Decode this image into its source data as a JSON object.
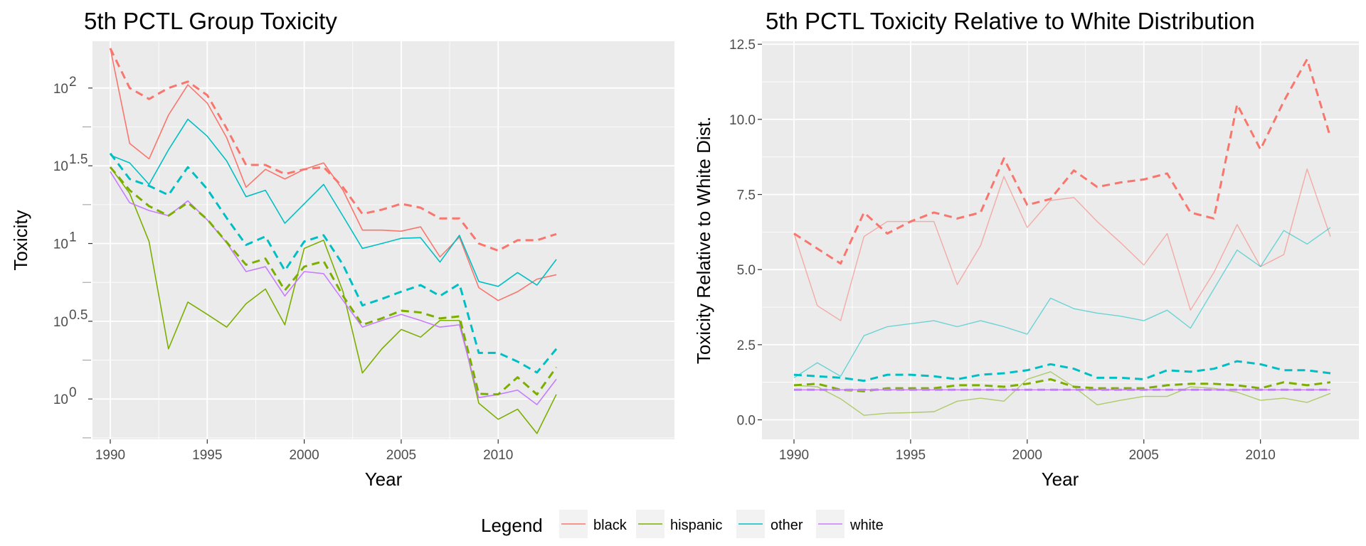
{
  "colors": {
    "black": "#F8766D",
    "hispanic": "#7CAE00",
    "other": "#00BFC4",
    "white": "#C77CFF",
    "panel_bg": "#EBEBEB",
    "grid": "#FFFFFF"
  },
  "legend": {
    "title": "Legend",
    "position": "bottom",
    "items": [
      "black",
      "hispanic",
      "other",
      "white"
    ]
  },
  "chart_data": [
    {
      "type": "line",
      "title": "5th PCTL Group Toxicity",
      "xlabel": "Year",
      "ylabel": "Toxicity",
      "y_scale": "log10",
      "xlim": [
        1990,
        2013
      ],
      "x_ticks": [
        1990,
        1995,
        2000,
        2005,
        2010
      ],
      "x_tick_labels": [
        "1990",
        "1995",
        "2000",
        "2005",
        "2010"
      ],
      "y_ticks": [
        1,
        3.162,
        10,
        31.62,
        100
      ],
      "y_tick_labels": [
        "10",
        "10",
        "10",
        "10",
        "10"
      ],
      "y_tick_exponents": [
        "0",
        "0.5",
        "1",
        "1.5",
        "2"
      ],
      "ylim": [
        0.55,
        200
      ],
      "x": [
        1990,
        1991,
        1992,
        1993,
        1994,
        1995,
        1996,
        1997,
        1998,
        1999,
        2000,
        2001,
        2002,
        2003,
        2004,
        2005,
        2006,
        2007,
        2008,
        2009,
        2010,
        2011,
        2012,
        2013
      ],
      "series": [
        {
          "name": "black",
          "style": "solid",
          "values": [
            180,
            44,
            35,
            67,
            105,
            80,
            48,
            23,
            30,
            26,
            30,
            33,
            22,
            12.2,
            12.2,
            12,
            12.8,
            8.2,
            11,
            5.2,
            4.3,
            4.9,
            5.9,
            6.3
          ]
        },
        {
          "name": "hispanic",
          "style": "solid",
          "values": [
            31,
            21,
            10.3,
            2.1,
            4.2,
            3.5,
            2.9,
            4.1,
            5.1,
            3.0,
            9.3,
            10.5,
            4.9,
            1.47,
            2.1,
            2.8,
            2.5,
            3.2,
            3.2,
            0.94,
            0.74,
            0.86,
            0.6,
            1.07
          ]
        },
        {
          "name": "other",
          "style": "solid",
          "values": [
            37,
            33,
            24,
            40,
            63,
            49,
            34,
            20,
            22,
            13.5,
            18,
            24,
            15,
            9.3,
            10,
            10.8,
            10.9,
            7.6,
            11.3,
            5.7,
            5.3,
            6.5,
            5.4,
            7.9
          ]
        },
        {
          "name": "white",
          "style": "solid",
          "values": [
            29,
            18.3,
            16.3,
            15.1,
            18.8,
            14.2,
            10.1,
            6.6,
            7.1,
            4.6,
            6.6,
            6.4,
            4.3,
            2.9,
            3.2,
            3.5,
            3.2,
            2.9,
            3.0,
            1.02,
            1.07,
            1.14,
            0.92,
            1.34
          ]
        },
        {
          "name": "black",
          "style": "dashed",
          "values": [
            180,
            100,
            85,
            100,
            110,
            90,
            55,
            32,
            32,
            28,
            30,
            31,
            23,
            15.5,
            16.5,
            18,
            17,
            14.5,
            14.5,
            10,
            9,
            10.5,
            10.5,
            11.5
          ]
        },
        {
          "name": "hispanic",
          "style": "dashed",
          "values": [
            31,
            22,
            17.4,
            15.1,
            18.3,
            14.3,
            10.2,
            7.3,
            8.0,
            5.0,
            7.1,
            7.7,
            4.6,
            3.0,
            3.3,
            3.7,
            3.6,
            3.3,
            3.4,
            1.08,
            1.07,
            1.38,
            1.07,
            1.6
          ]
        },
        {
          "name": "other",
          "style": "dashed",
          "values": [
            38,
            26,
            23.5,
            20.5,
            31,
            22.4,
            14.6,
            9.8,
            11.1,
            6.7,
            10.3,
            11.3,
            7.3,
            4.0,
            4.4,
            4.9,
            5.4,
            4.6,
            5.5,
            1.98,
            1.98,
            1.74,
            1.48,
            2.1
          ]
        }
      ]
    },
    {
      "type": "line",
      "title": "5th PCTL Toxicity Relative to White Distribution",
      "xlabel": "Year",
      "ylabel": "Toxicity Relative to White Dist.",
      "xlim": [
        1990,
        2013
      ],
      "ylim": [
        -0.65,
        12.6
      ],
      "x_ticks": [
        1990,
        1995,
        2000,
        2005,
        2010
      ],
      "x_tick_labels": [
        "1990",
        "1995",
        "2000",
        "2005",
        "2010"
      ],
      "y_ticks": [
        0,
        2.5,
        5,
        7.5,
        10,
        12.5
      ],
      "y_tick_labels": [
        "0.0",
        "2.5",
        "5.0",
        "7.5",
        "10.0",
        "12.5"
      ],
      "x": [
        1990,
        1991,
        1992,
        1993,
        1994,
        1995,
        1996,
        1997,
        1998,
        1999,
        2000,
        2001,
        2002,
        2003,
        2004,
        2005,
        2006,
        2007,
        2008,
        2009,
        2010,
        2011,
        2012,
        2013
      ],
      "series": [
        {
          "name": "black",
          "style": "solid",
          "values": [
            6.2,
            3.8,
            3.3,
            6.1,
            6.6,
            6.6,
            6.6,
            4.5,
            5.8,
            8.1,
            6.4,
            7.3,
            7.4,
            6.6,
            5.9,
            5.15,
            6.2,
            3.65,
            4.9,
            6.5,
            5.1,
            5.5,
            8.35,
            6.1
          ]
        },
        {
          "name": "hispanic",
          "style": "solid",
          "values": [
            1.15,
            1.1,
            0.7,
            0.15,
            0.22,
            0.24,
            0.27,
            0.62,
            0.72,
            0.62,
            1.35,
            1.6,
            1.1,
            0.5,
            0.65,
            0.78,
            0.78,
            1.1,
            1.05,
            0.92,
            0.65,
            0.72,
            0.58,
            0.88
          ]
        },
        {
          "name": "other",
          "style": "solid",
          "values": [
            1.4,
            1.9,
            1.45,
            2.8,
            3.1,
            3.2,
            3.3,
            3.1,
            3.3,
            3.1,
            2.85,
            4.05,
            3.7,
            3.55,
            3.45,
            3.3,
            3.65,
            3.05,
            4.35,
            5.65,
            5.1,
            6.3,
            5.85,
            6.4
          ]
        },
        {
          "name": "white",
          "style": "solid",
          "values": [
            1,
            1,
            1,
            1,
            1,
            1,
            1,
            1,
            1,
            1,
            1,
            1,
            1,
            1,
            1,
            1,
            1,
            1,
            1,
            1,
            1,
            1,
            1,
            1
          ]
        },
        {
          "name": "black",
          "style": "dashed",
          "values": [
            6.2,
            5.7,
            5.2,
            6.9,
            6.2,
            6.6,
            6.9,
            6.7,
            6.9,
            8.7,
            7.15,
            7.35,
            8.3,
            7.75,
            7.9,
            8.0,
            8.2,
            6.9,
            6.7,
            10.5,
            9.0,
            10.6,
            12.0,
            9.4
          ]
        },
        {
          "name": "hispanic",
          "style": "dashed",
          "values": [
            1.15,
            1.2,
            1.0,
            0.95,
            1.05,
            1.05,
            1.05,
            1.15,
            1.15,
            1.1,
            1.2,
            1.35,
            1.1,
            1.05,
            1.05,
            1.05,
            1.15,
            1.2,
            1.2,
            1.15,
            1.05,
            1.25,
            1.15,
            1.25
          ]
        },
        {
          "name": "other",
          "style": "dashed",
          "values": [
            1.5,
            1.45,
            1.4,
            1.3,
            1.5,
            1.5,
            1.45,
            1.35,
            1.5,
            1.55,
            1.65,
            1.85,
            1.7,
            1.4,
            1.4,
            1.35,
            1.65,
            1.6,
            1.7,
            1.95,
            1.85,
            1.65,
            1.65,
            1.55
          ]
        },
        {
          "name": "white",
          "style": "dashed",
          "values": [
            1,
            1,
            1,
            1,
            1,
            1,
            1,
            1,
            1,
            1,
            1,
            1,
            1,
            1,
            1,
            1,
            1,
            1,
            1,
            1,
            1,
            1,
            1,
            1
          ]
        }
      ]
    }
  ]
}
